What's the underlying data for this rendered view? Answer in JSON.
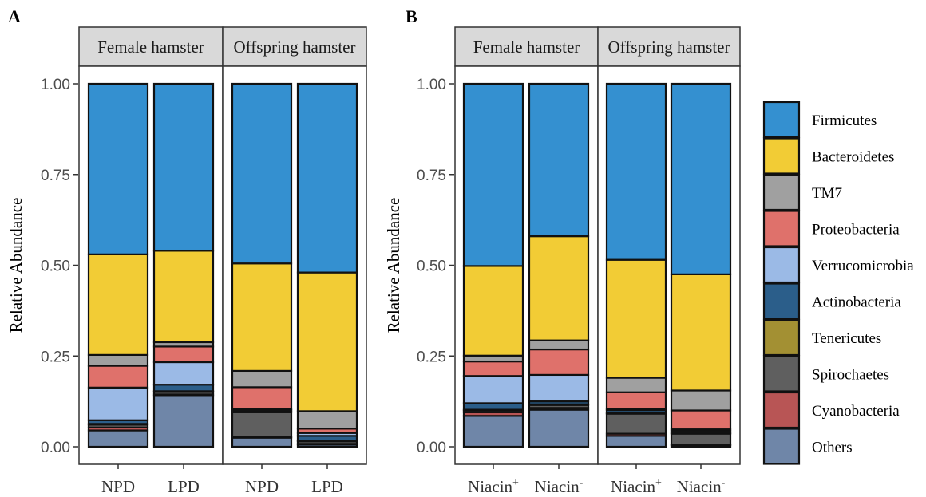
{
  "panels": [
    {
      "letter": "A",
      "ylabel": "Relative Abundance",
      "facets": [
        {
          "label": "Female hamster",
          "bars": [
            {
              "x_label": "NPD",
              "x_sup": "",
              "values": [
                0.47,
                0.277,
                0.03,
                0.06,
                0.09,
                0.01,
                0.002,
                0.008,
                0.008,
                0.045
              ]
            },
            {
              "x_label": "LPD",
              "x_sup": "",
              "values": [
                0.46,
                0.252,
                0.012,
                0.043,
                0.062,
                0.018,
                0.002,
                0.007,
                0.004,
                0.14
              ]
            }
          ]
        },
        {
          "label": "Offspring hamster",
          "bars": [
            {
              "x_label": "NPD",
              "x_sup": "",
              "values": [
                0.495,
                0.296,
                0.045,
                0.06,
                0.003,
                0.004,
                0.002,
                0.068,
                0.002,
                0.025
              ]
            },
            {
              "x_label": "LPD",
              "x_sup": "",
              "values": [
                0.52,
                0.382,
                0.048,
                0.012,
                0.008,
                0.013,
                0.002,
                0.007,
                0.002,
                0.006
              ]
            }
          ]
        }
      ]
    },
    {
      "letter": "B",
      "ylabel": "Relative Abundance",
      "facets": [
        {
          "label": "Female hamster",
          "bars": [
            {
              "x_label": "Niacin",
              "x_sup": "+",
              "values": [
                0.502,
                0.247,
                0.016,
                0.04,
                0.075,
                0.018,
                0.002,
                0.005,
                0.01,
                0.085
              ]
            },
            {
              "x_label": "Niacin",
              "x_sup": "-",
              "values": [
                0.42,
                0.287,
                0.025,
                0.07,
                0.073,
                0.008,
                0.002,
                0.008,
                0.005,
                0.102
              ]
            }
          ]
        },
        {
          "label": "Offspring hamster",
          "bars": [
            {
              "x_label": "Niacin",
              "x_sup": "+",
              "values": [
                0.485,
                0.325,
                0.04,
                0.045,
                0.004,
                0.008,
                0.002,
                0.055,
                0.006,
                0.03
              ]
            },
            {
              "x_label": "Niacin",
              "x_sup": "-",
              "values": [
                0.525,
                0.32,
                0.055,
                0.052,
                0.004,
                0.006,
                0.002,
                0.03,
                0.002,
                0.004
              ]
            }
          ]
        }
      ]
    }
  ],
  "legend": [
    {
      "name": "Firmicutes",
      "color": "#3490D0"
    },
    {
      "name": "Bacteroidetes",
      "color": "#F2CC35"
    },
    {
      "name": "TM7",
      "color": "#A0A0A0"
    },
    {
      "name": "Proteobacteria",
      "color": "#DF716B"
    },
    {
      "name": "Verrucomicrobia",
      "color": "#9BBAE6"
    },
    {
      "name": "Actinobacteria",
      "color": "#2B5E8A"
    },
    {
      "name": "Tenericutes",
      "color": "#A39033"
    },
    {
      "name": "Spirochaetes",
      "color": "#5F5F5F"
    },
    {
      "name": "Cyanobacteria",
      "color": "#B85555"
    },
    {
      "name": "Others",
      "color": "#6F86A8"
    }
  ],
  "y_ticks": [
    "0.00",
    "0.25",
    "0.50",
    "0.75",
    "1.00"
  ],
  "chart_data": [
    {
      "type": "bar",
      "stacked": true,
      "title": "",
      "ylabel": "Relative Abundance",
      "ylim": [
        0,
        1
      ],
      "facets": [
        "Female hamster",
        "Female hamster",
        "Offspring hamster",
        "Offspring hamster"
      ],
      "categories": [
        "NPD",
        "LPD",
        "NPD",
        "LPD"
      ],
      "series": [
        {
          "name": "Firmicutes",
          "values": [
            0.47,
            0.46,
            0.495,
            0.52
          ]
        },
        {
          "name": "Bacteroidetes",
          "values": [
            0.277,
            0.252,
            0.296,
            0.382
          ]
        },
        {
          "name": "TM7",
          "values": [
            0.03,
            0.012,
            0.045,
            0.048
          ]
        },
        {
          "name": "Proteobacteria",
          "values": [
            0.06,
            0.043,
            0.06,
            0.012
          ]
        },
        {
          "name": "Verrucomicrobia",
          "values": [
            0.09,
            0.062,
            0.003,
            0.008
          ]
        },
        {
          "name": "Actinobacteria",
          "values": [
            0.01,
            0.018,
            0.004,
            0.013
          ]
        },
        {
          "name": "Tenericutes",
          "values": [
            0.002,
            0.002,
            0.002,
            0.002
          ]
        },
        {
          "name": "Spirochaetes",
          "values": [
            0.008,
            0.007,
            0.068,
            0.007
          ]
        },
        {
          "name": "Cyanobacteria",
          "values": [
            0.008,
            0.004,
            0.002,
            0.002
          ]
        },
        {
          "name": "Others",
          "values": [
            0.045,
            0.14,
            0.025,
            0.006
          ]
        }
      ]
    },
    {
      "type": "bar",
      "stacked": true,
      "title": "",
      "ylabel": "Relative Abundance",
      "ylim": [
        0,
        1
      ],
      "facets": [
        "Female hamster",
        "Female hamster",
        "Offspring hamster",
        "Offspring hamster"
      ],
      "categories": [
        "Niacin+",
        "Niacin-",
        "Niacin+",
        "Niacin-"
      ],
      "series": [
        {
          "name": "Firmicutes",
          "values": [
            0.502,
            0.42,
            0.485,
            0.525
          ]
        },
        {
          "name": "Bacteroidetes",
          "values": [
            0.247,
            0.287,
            0.325,
            0.32
          ]
        },
        {
          "name": "TM7",
          "values": [
            0.016,
            0.025,
            0.04,
            0.055
          ]
        },
        {
          "name": "Proteobacteria",
          "values": [
            0.04,
            0.07,
            0.045,
            0.052
          ]
        },
        {
          "name": "Verrucomicrobia",
          "values": [
            0.075,
            0.073,
            0.004,
            0.004
          ]
        },
        {
          "name": "Actinobacteria",
          "values": [
            0.018,
            0.008,
            0.008,
            0.006
          ]
        },
        {
          "name": "Tenericutes",
          "values": [
            0.002,
            0.002,
            0.002,
            0.002
          ]
        },
        {
          "name": "Spirochaetes",
          "values": [
            0.005,
            0.008,
            0.055,
            0.03
          ]
        },
        {
          "name": "Cyanobacteria",
          "values": [
            0.01,
            0.005,
            0.006,
            0.002
          ]
        },
        {
          "name": "Others",
          "values": [
            0.085,
            0.102,
            0.03,
            0.004
          ]
        }
      ]
    }
  ]
}
